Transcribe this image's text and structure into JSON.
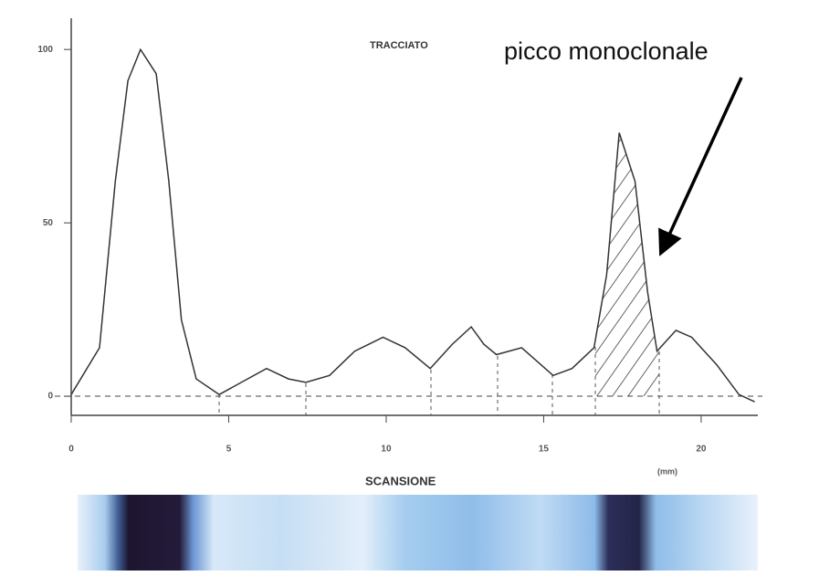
{
  "chart_data": {
    "type": "line",
    "title": "TRACCIATO",
    "annotation": "picco monoclonale",
    "x_label": "SCANSIONE",
    "x_unit": "(mm)",
    "x": [
      0,
      0.9,
      1.4,
      1.8,
      2.2,
      2.7,
      3.1,
      3.5,
      3.97,
      4.7,
      5.4,
      6.2,
      6.9,
      7.45,
      8.2,
      9.0,
      9.9,
      10.6,
      11.4,
      12.1,
      12.7,
      13.1,
      13.5,
      14.3,
      14.8,
      15.3,
      15.9,
      16.6,
      17.0,
      17.4,
      17.9,
      18.3,
      18.6,
      19.2,
      19.7,
      20.5,
      21.2,
      21.7
    ],
    "series": [
      {
        "name": "tracciato",
        "color": "#333333",
        "values": [
          0.5,
          14,
          62,
          91,
          100,
          93,
          62,
          22,
          5,
          0.5,
          4,
          8,
          5,
          4,
          6,
          13,
          17,
          14,
          8,
          15,
          20,
          15,
          12,
          14,
          10,
          6,
          8,
          14,
          35,
          76,
          62,
          30,
          13,
          19,
          17,
          9,
          0.5,
          -1.6
        ]
      }
    ],
    "xlim": [
      0,
      21.8
    ],
    "ylim": [
      -5.5,
      109
    ],
    "xticks": [
      0,
      5,
      10,
      15,
      20
    ],
    "yticks": [
      0,
      50,
      100
    ]
  }
}
